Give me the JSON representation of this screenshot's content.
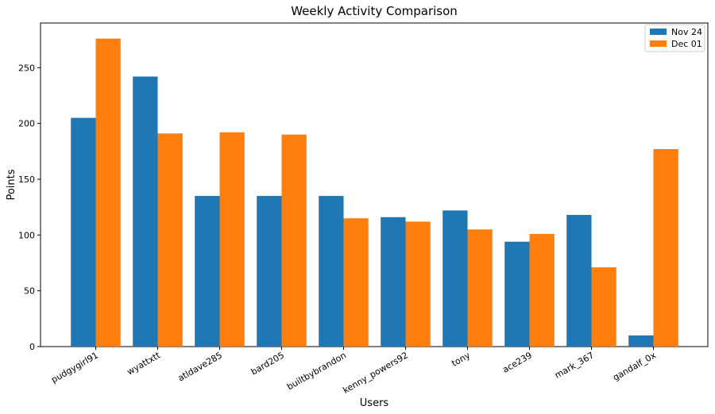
{
  "chart_data": {
    "type": "bar",
    "title": "Weekly Activity Comparison",
    "xlabel": "Users",
    "ylabel": "Points",
    "ylim": [
      0,
      290
    ],
    "yticks": [
      0,
      50,
      100,
      150,
      200,
      250
    ],
    "categories": [
      "pudgygirl91",
      "wyattxtt",
      "atldave285",
      "bard205",
      "builtbybrandon",
      "kenny_powers92",
      "tony",
      "ace239",
      "mark_367",
      "gandalf_0x"
    ],
    "series": [
      {
        "name": "Nov 24",
        "color": "#1f77b4",
        "values": [
          205,
          242,
          135,
          135,
          135,
          116,
          122,
          94,
          118,
          10
        ]
      },
      {
        "name": "Dec 01",
        "color": "#ff7f0e",
        "values": [
          276,
          191,
          192,
          190,
          115,
          112,
          105,
          101,
          71,
          177
        ]
      }
    ],
    "legend_position": "top-right",
    "grid": false
  }
}
